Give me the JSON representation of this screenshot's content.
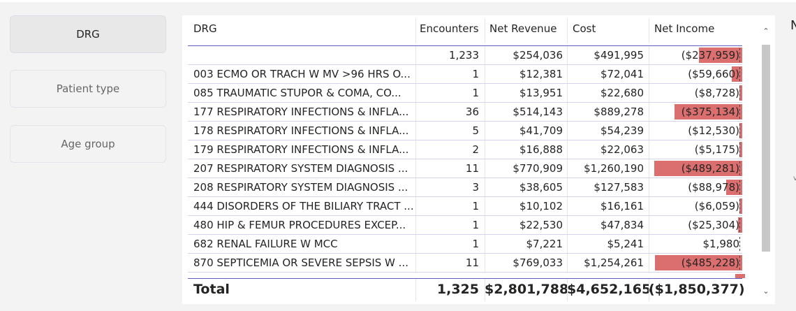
{
  "slicers": [
    {
      "label": "DRG",
      "selected": true
    },
    {
      "label": "Patient type",
      "selected": false
    },
    {
      "label": "Age group",
      "selected": false
    }
  ],
  "table": {
    "columns": [
      "DRG",
      "Encounters",
      "Net Revenue",
      "Cost",
      "Net Income"
    ],
    "rows": [
      {
        "drg": "",
        "encounters": "1,233",
        "revenue": "$254,036",
        "cost": "$491,995",
        "net": "($237,959)",
        "net_bar": 0.49
      },
      {
        "drg": "003 ECMO OR TRACH W MV >96 HRS O...",
        "encounters": "1",
        "revenue": "$12,381",
        "cost": "$72,041",
        "net": "($59,660)",
        "net_bar": 0.12
      },
      {
        "drg": "085 TRAUMATIC STUPOR & COMA, CO...",
        "encounters": "1",
        "revenue": "$13,951",
        "cost": "$22,680",
        "net": "($8,728)",
        "net_bar": 0.02
      },
      {
        "drg": "177 RESPIRATORY INFECTIONS & INFLA...",
        "encounters": "36",
        "revenue": "$514,143",
        "cost": "$889,278",
        "net": "($375,134)",
        "net_bar": 0.77
      },
      {
        "drg": "178 RESPIRATORY INFECTIONS & INFLA...",
        "encounters": "5",
        "revenue": "$41,709",
        "cost": "$54,239",
        "net": "($12,530)",
        "net_bar": 0.03
      },
      {
        "drg": "179 RESPIRATORY INFECTIONS & INFLA...",
        "encounters": "2",
        "revenue": "$16,888",
        "cost": "$22,063",
        "net": "($5,175)",
        "net_bar": 0.01
      },
      {
        "drg": "207 RESPIRATORY SYSTEM DIAGNOSIS ...",
        "encounters": "11",
        "revenue": "$770,909",
        "cost": "$1,260,190",
        "net": "($489,281)",
        "net_bar": 1.0
      },
      {
        "drg": "208 RESPIRATORY SYSTEM DIAGNOSIS ...",
        "encounters": "3",
        "revenue": "$38,605",
        "cost": "$127,583",
        "net": "($88,978)",
        "net_bar": 0.18
      },
      {
        "drg": "444 DISORDERS OF THE BILIARY TRACT ...",
        "encounters": "1",
        "revenue": "$10,102",
        "cost": "$16,161",
        "net": "($6,059)",
        "net_bar": 0.01
      },
      {
        "drg": "480 HIP & FEMUR PROCEDURES EXCEP...",
        "encounters": "1",
        "revenue": "$22,530",
        "cost": "$47,834",
        "net": "($25,304)",
        "net_bar": 0.05
      },
      {
        "drg": "682 RENAL FAILURE W MCC",
        "encounters": "1",
        "revenue": "$7,221",
        "cost": "$5,241",
        "net": "$1,980",
        "net_bar": 0
      },
      {
        "drg": "870 SEPTICEMIA OR SEVERE SEPSIS W ...",
        "encounters": "11",
        "revenue": "$769,033",
        "cost": "$1,254,261",
        "net": "($485,228)",
        "net_bar": 0.99
      }
    ],
    "total": {
      "label": "Total",
      "encounters": "1,325",
      "revenue": "$2,801,788",
      "cost": "$4,652,165",
      "net": "($1,850,377)"
    }
  },
  "icons": {
    "scroll_up": "chevron-up-icon",
    "scroll_down": "chevron-down-icon"
  },
  "colors": {
    "negative_bar": "#db6e6e",
    "header_rule": "#5b5fc7"
  }
}
